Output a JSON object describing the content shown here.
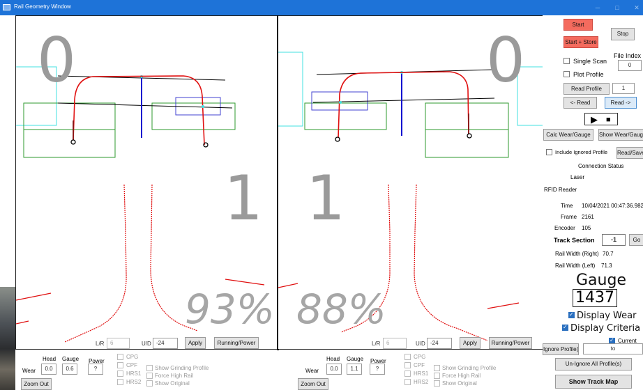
{
  "window": {
    "title": "Rail Geometry Window"
  },
  "left_panel": {
    "top_number": "0",
    "mid_number": "1",
    "percent": "93%",
    "lr_label": "L/R",
    "lr_value": "6",
    "ud_label": "U/D",
    "ud_value": "-24",
    "apply_label": "Apply",
    "running_power_label": "Running/Power"
  },
  "right_panel": {
    "top_number": "0",
    "mid_number": "1",
    "percent": "88%",
    "lr_label": "L/R",
    "lr_value": "6",
    "ud_label": "U/D",
    "ud_value": "-24",
    "apply_label": "Apply",
    "running_power_label": "Running/Power"
  },
  "bottom_left": {
    "head_label": "Head",
    "gauge_label": "Gauge",
    "power_label": "Power",
    "wear_label": "Wear",
    "head_value": "0.0",
    "gauge_value": "0.6",
    "power_value": "?",
    "cpg": "CPG",
    "cpf": "CPF",
    "hrs1": "HRS1",
    "hrs2": "HRS2",
    "show_grinding": "Show Grinding Profile",
    "force_high_rail": "Force High Rail",
    "show_original": "Show Original",
    "zoom_out": "Zoom Out"
  },
  "bottom_right": {
    "head_label": "Head",
    "gauge_label": "Gauge",
    "power_label": "Power",
    "wear_label": "Wear",
    "head_value": "0.0",
    "gauge_value": "1.1",
    "power_value": "?",
    "cpg": "CPG",
    "cpf": "CPF",
    "hrs1": "HRS1",
    "hrs2": "HRS2",
    "show_grinding": "Show Grinding Profile",
    "force_high_rail": "Force High Rail",
    "show_original": "Show Original",
    "zoom_out": "Zoom Out"
  },
  "sidebar": {
    "start": "Start",
    "stop": "Stop",
    "start_store": "Start + Store",
    "single_scan": "Single Scan",
    "file_index_label": "File Index",
    "file_index_value": "0",
    "plot_profile": "Plot Profile",
    "read_profile": "Read Profile",
    "read_profile_value": "1",
    "read_back": "<- Read",
    "read_fwd": "Read ->",
    "calc_wear": "Calc Wear/Gauge",
    "show_wear": "Show Wear/Gauge",
    "include_ignored": "Include Ignored Profile",
    "read_save": "Read/Save",
    "connection_status": "Connection Status",
    "laser": "Laser",
    "rfid": "RFID Reader",
    "time_label": "Time",
    "time_value": "10/04/2021 00:47:36.982",
    "frame_label": "Frame",
    "frame_value": "2161",
    "encoder_label": "Encoder",
    "encoder_value": "105",
    "track_section_label": "Track Section",
    "track_section_value": "-1",
    "go": "Go",
    "rail_width_right_label": "Rail Width (Right)",
    "rail_width_right_value": "70.7",
    "rail_width_left_label": "Rail Width (Left)",
    "rail_width_left_value": "71.3",
    "gauge_title": "Gauge",
    "gauge_value": "1437",
    "display_wear": "Display Wear",
    "display_criteria": "Display Criteria",
    "current": "Current",
    "ignore_profiles": "Ignore Profile(s)",
    "to": "to",
    "unignore_all": "Un-Ignore All Profile(s)",
    "show_track_map": "Show Track Map"
  },
  "colors": {
    "titlebar": "#1e73d8",
    "start_button": "#f46b5e",
    "profile_red": "#e01010",
    "gauge_line_blue": "#1010d0",
    "box_green": "#2e9a2e",
    "box_cyan": "#40e0e0",
    "box_blue": "#4040d0"
  }
}
